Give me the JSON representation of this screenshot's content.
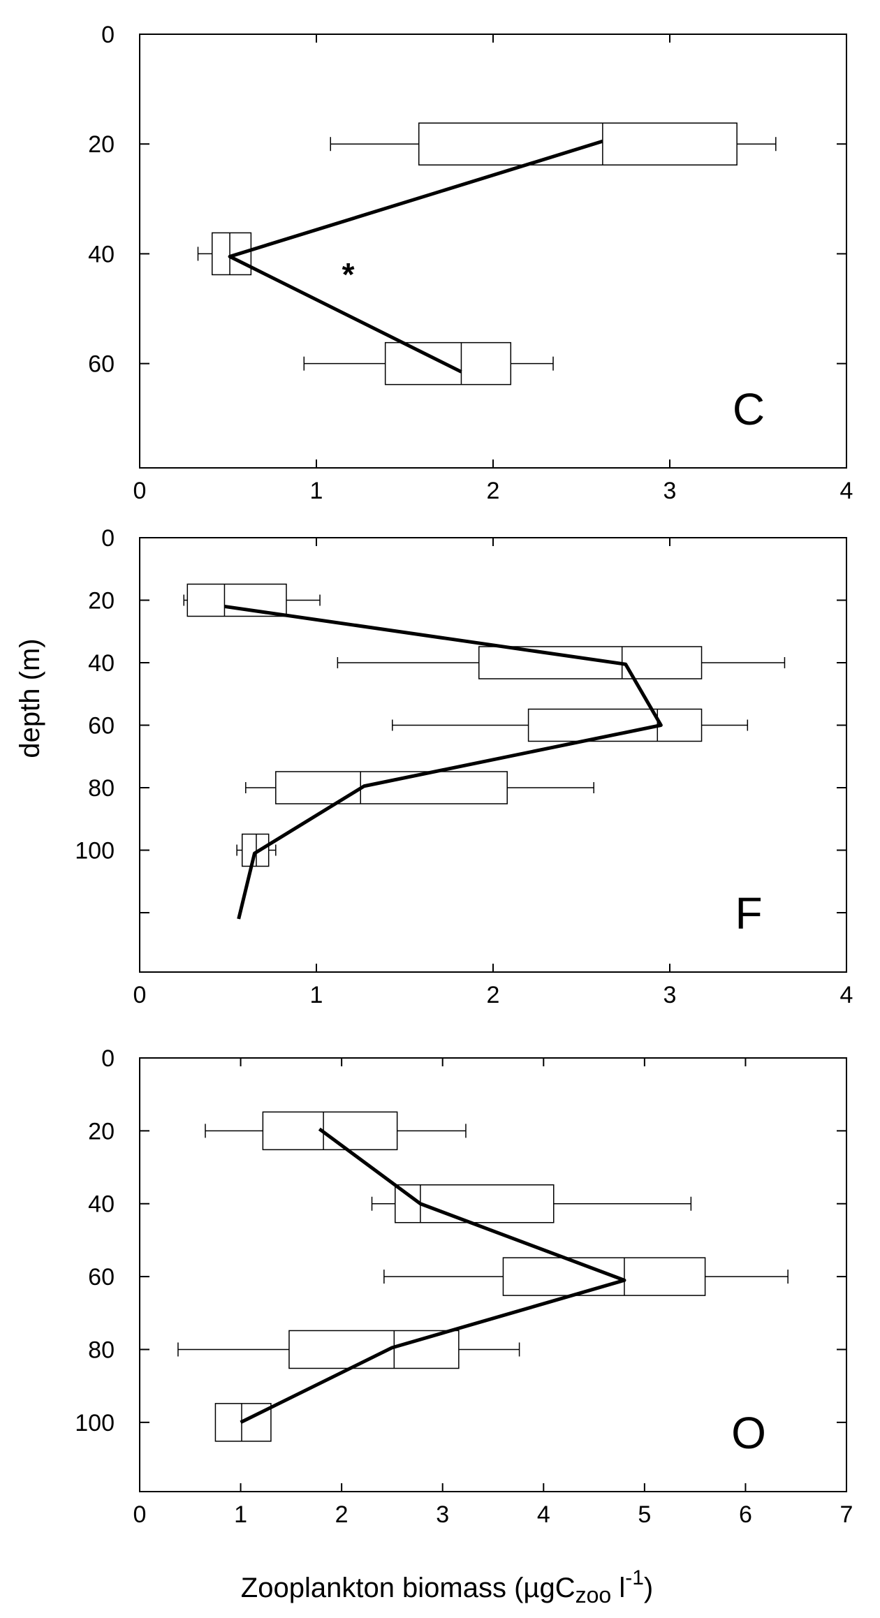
{
  "chart_data": [
    {
      "type": "box",
      "label": "C",
      "xlim": [
        0,
        4
      ],
      "x_ticks": [
        0,
        1,
        2,
        3,
        4
      ],
      "ylim": [
        0,
        79
      ],
      "y_ticks": [
        0,
        20,
        40,
        60
      ],
      "y_inverted": true,
      "boxes": [
        {
          "depth": 20,
          "whisker_low": 1.08,
          "q1": 1.58,
          "median": 2.62,
          "q3": 3.38,
          "whisker_high": 3.6
        },
        {
          "depth": 40,
          "whisker_low": 0.33,
          "q1": 0.41,
          "median": 0.51,
          "q3": 0.63,
          "whisker_high": 0.63
        },
        {
          "depth": 60,
          "whisker_low": 0.93,
          "q1": 1.39,
          "median": 1.82,
          "q3": 2.1,
          "whisker_high": 2.34
        }
      ],
      "line": {
        "x": [
          2.62,
          0.51,
          1.82
        ],
        "y": [
          19.5,
          40.5,
          61.5
        ]
      },
      "annotations": [
        {
          "text": "*",
          "x": 1.18,
          "y": 43
        }
      ]
    },
    {
      "type": "box",
      "label": "F",
      "xlim": [
        0,
        4
      ],
      "x_ticks": [
        0,
        1,
        2,
        3,
        4
      ],
      "ylim": [
        0,
        139
      ],
      "y_ticks": [
        0,
        20,
        40,
        60,
        80,
        100
      ],
      "y_minor_ticks": [
        120
      ],
      "y_inverted": true,
      "boxes": [
        {
          "depth": 20,
          "whisker_low": 0.25,
          "q1": 0.27,
          "median": 0.48,
          "q3": 0.83,
          "whisker_high": 1.02
        },
        {
          "depth": 40,
          "whisker_low": 1.12,
          "q1": 1.92,
          "median": 2.73,
          "q3": 3.18,
          "whisker_high": 3.65
        },
        {
          "depth": 60,
          "whisker_low": 1.43,
          "q1": 2.2,
          "median": 2.93,
          "q3": 3.18,
          "whisker_high": 3.44
        },
        {
          "depth": 80,
          "whisker_low": 0.6,
          "q1": 0.77,
          "median": 1.25,
          "q3": 2.08,
          "whisker_high": 2.57
        },
        {
          "depth": 100,
          "whisker_low": 0.55,
          "q1": 0.58,
          "median": 0.66,
          "q3": 0.73,
          "whisker_high": 0.77
        }
      ],
      "line": {
        "x": [
          0.48,
          2.75,
          2.95,
          1.27,
          0.65,
          0.56
        ],
        "y": [
          22,
          40.5,
          60,
          79.5,
          101,
          122
        ]
      }
    },
    {
      "type": "box",
      "label": "O",
      "xlim": [
        0,
        7
      ],
      "x_ticks": [
        0,
        1,
        2,
        3,
        4,
        5,
        6,
        7
      ],
      "ylim": [
        0,
        119
      ],
      "y_ticks": [
        0,
        20,
        40,
        60,
        80,
        100
      ],
      "y_inverted": true,
      "boxes": [
        {
          "depth": 20,
          "whisker_low": 0.65,
          "q1": 1.22,
          "median": 1.82,
          "q3": 2.55,
          "whisker_high": 3.23
        },
        {
          "depth": 40,
          "whisker_low": 2.3,
          "q1": 2.53,
          "median": 2.78,
          "q3": 4.1,
          "whisker_high": 5.46
        },
        {
          "depth": 60,
          "whisker_low": 2.42,
          "q1": 3.6,
          "median": 4.8,
          "q3": 5.6,
          "whisker_high": 6.42
        },
        {
          "depth": 80,
          "whisker_low": 0.38,
          "q1": 1.48,
          "median": 2.52,
          "q3": 3.16,
          "whisker_high": 3.76
        },
        {
          "depth": 100,
          "whisker_low": 0.75,
          "q1": 0.75,
          "median": 1.01,
          "q3": 1.3,
          "whisker_high": 1.3
        }
      ],
      "line": {
        "x": [
          1.78,
          2.78,
          4.8,
          2.5,
          1.0
        ],
        "y": [
          19.5,
          40,
          61,
          79.5,
          100
        ]
      }
    }
  ],
  "ylabel": "depth (m)",
  "xlabel": "Zooplankton biomass (µgC",
  "xlabel_sub": "zoo",
  "xlabel_unit": " l",
  "xlabel_sup": "-1",
  "xlabel_close": ")"
}
